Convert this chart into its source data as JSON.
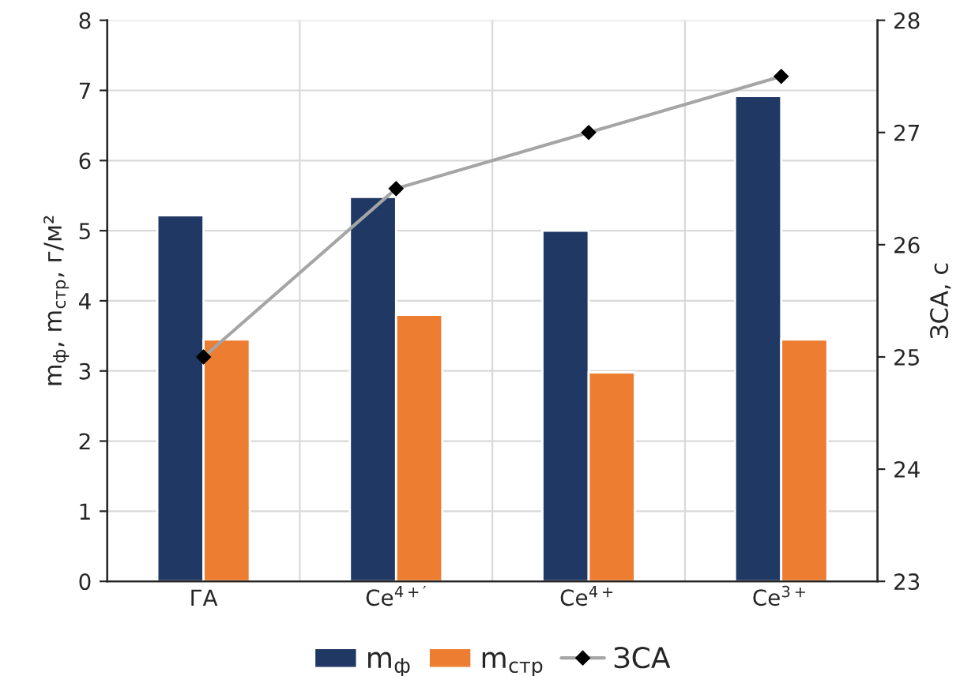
{
  "chart_data": {
    "type": "bar",
    "categories": [
      "ГА",
      "Ce$^{4+′}$",
      "Ce$^{4+}$",
      "Ce$^{3+}$"
    ],
    "series": [
      {
        "name": "m$_{ф}$",
        "color": "#203864",
        "values": [
          5.22,
          5.48,
          5.0,
          6.92
        ]
      },
      {
        "name": "m$_{стр}$",
        "color": "#ed7d31",
        "values": [
          3.45,
          3.8,
          2.98,
          3.45
        ]
      },
      {
        "name": "ЗСА",
        "type": "line",
        "axis": "y2",
        "color": "#a5a5a5",
        "marker": "diamond",
        "values": [
          25,
          26.5,
          27,
          27.5
        ]
      }
    ],
    "ylabel": "m$_{ф}$, m$_{стр}$, г/м²",
    "y2label": "ЗСА, с",
    "ylim": [
      0,
      8
    ],
    "yticks": [
      0,
      1,
      2,
      3,
      4,
      5,
      6,
      7,
      8
    ],
    "y2lim": [
      23,
      28
    ],
    "y2ticks": [
      23,
      24,
      25,
      26,
      27,
      28
    ],
    "grid": true,
    "legend": "bottom"
  }
}
